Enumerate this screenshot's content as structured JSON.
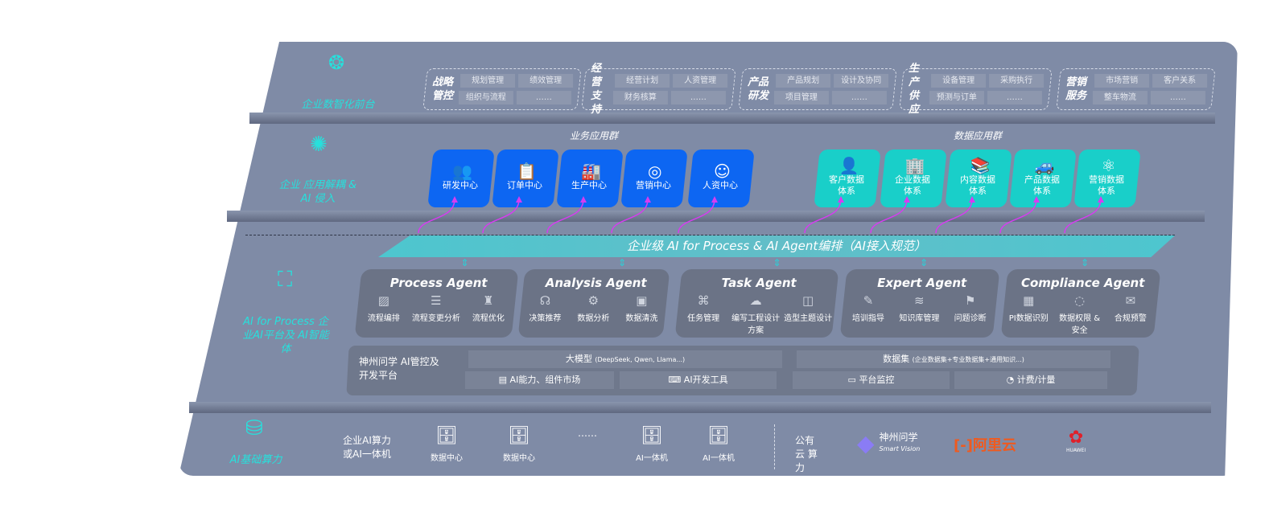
{
  "layers": {
    "front": {
      "label": "企业数智化前台",
      "icon": "brain-icon",
      "groups": [
        {
          "title": "战略管控",
          "items": [
            "规划管理",
            "绩效管理",
            "组织与流程",
            "……"
          ]
        },
        {
          "title": "经营支持",
          "items": [
            "经营计划",
            "人资管理",
            "财务核算",
            "……"
          ]
        },
        {
          "title": "产品研发",
          "items": [
            "产品规划",
            "设计及协同",
            "项目管理",
            "……"
          ]
        },
        {
          "title": "生产供应",
          "items": [
            "设备管理",
            "采购执行",
            "预测与订单",
            "……"
          ]
        },
        {
          "title": "营销服务",
          "items": [
            "市场营销",
            "客户关系",
            "整车物流",
            "……"
          ]
        }
      ]
    },
    "apps": {
      "label": "企业 应用解耦 & AI 侵入",
      "icon": "molecule-icon",
      "business_title": "业务应用群",
      "data_title": "数据应用群",
      "business": [
        {
          "label": "研发中心",
          "icon": "users-icon"
        },
        {
          "label": "订单中心",
          "icon": "clipboard-icon"
        },
        {
          "label": "生产中心",
          "icon": "factory-icon"
        },
        {
          "label": "营销中心",
          "icon": "target-icon"
        },
        {
          "label": "人资中心",
          "icon": "person-icon"
        }
      ],
      "data": [
        {
          "label": "客户数据体系",
          "icon": "user-icon"
        },
        {
          "label": "企业数据体系",
          "icon": "building-icon"
        },
        {
          "label": "内容数据体系",
          "icon": "books-icon"
        },
        {
          "label": "产品数据体系",
          "icon": "car-icon"
        },
        {
          "label": "营销数据体系",
          "icon": "atom-icon"
        }
      ],
      "accent_blue": "#0d66f2",
      "accent_teal": "#19cfc9",
      "arrow_color": "#d63cf0"
    },
    "ai": {
      "label": "AI for Process 企业AI平台及 AI智能体",
      "icon": "face-scan-icon",
      "banner": "企业级 AI for Process & AI Agent编排（AI接入规范）",
      "agents": [
        {
          "name": "Process Agent",
          "features": [
            "流程编排",
            "流程变更分析",
            "流程优化"
          ]
        },
        {
          "name": "Analysis Agent",
          "features": [
            "决策推荐",
            "数据分析",
            "数据清洗"
          ]
        },
        {
          "name": "Task Agent",
          "features": [
            "任务管理",
            "编写工程设计方案",
            "造型主题设计"
          ]
        },
        {
          "name": "Expert Agent",
          "features": [
            "培训指导",
            "知识库管理",
            "问题诊断"
          ]
        },
        {
          "name": "Compliance Agent",
          "features": [
            "PI数据识别",
            "数据权限 & 安全",
            "合规预警"
          ]
        }
      ],
      "platform": {
        "title": "神州问学 AI管控及开发平台",
        "model": "大模型",
        "model_note": "(DeepSeek, Qwen, Llama...)",
        "dataset": "数据集",
        "dataset_note": "(企业数据集+专业数据集+通用知识...)",
        "tools": [
          "AI能力、组件市场",
          "AI开发工具",
          "平台监控",
          "计费/计量"
        ]
      }
    },
    "infra": {
      "label": "AI基础算力",
      "icon": "database-icon",
      "enterprise": "企业AI算力 或AI一体机",
      "nodes": [
        "数据中心",
        "数据中心",
        "……",
        "AI一体机",
        "AI一体机"
      ],
      "public": "公有云 算力",
      "vendors": [
        {
          "name": "神州问学",
          "sub": "Smart Vision"
        },
        {
          "name": "阿里云"
        },
        {
          "name": "HUAWEI"
        }
      ]
    }
  }
}
